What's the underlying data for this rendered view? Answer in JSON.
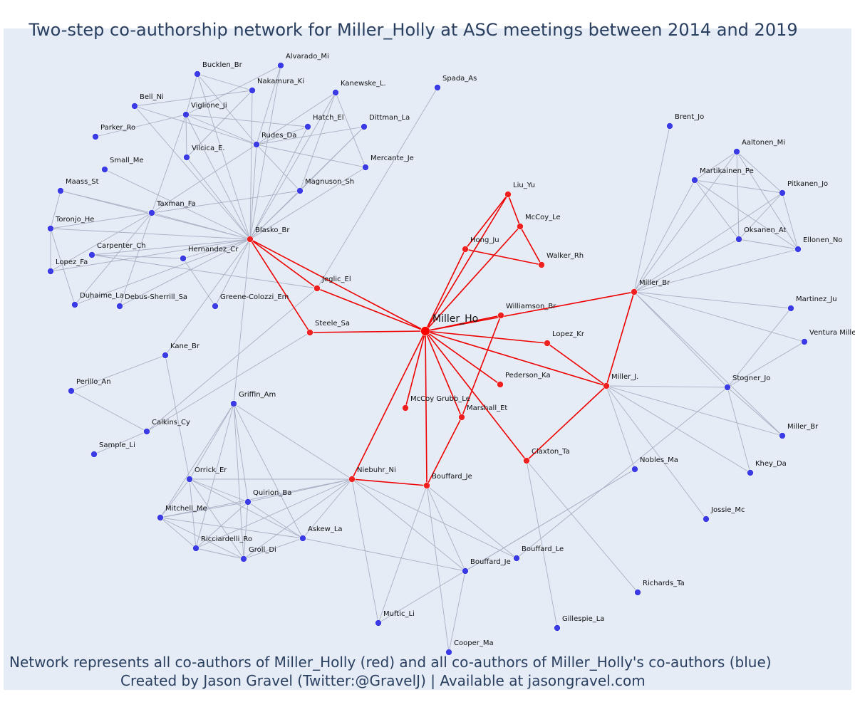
{
  "title": "Two-step co-authorship network for Miller_Holly at ASC meetings between 2014 and 2019",
  "footer": {
    "line1": "Network represents all co-authors of Miller_Holly (red) and all co-authors of Miller_Holly's co-authors (blue)",
    "line2": "Created by Jason Gravel (Twitter:@GravelJ) | Available at jasongravel.com"
  },
  "colors": {
    "background": "#e5ecf6",
    "focal": "#ff0000",
    "first_step": "#ef2020",
    "second_step": "#3b3be6",
    "red_edge": "#ee0000",
    "gray_edge": "#aab0c4",
    "text": "#2a3f5f"
  },
  "network": {
    "nodes": [
      {
        "id": "miller_ho",
        "label": "Miller_Ho",
        "group": "focal"
      },
      {
        "id": "liu_yu",
        "label": "Liu_Yu",
        "group": "first"
      },
      {
        "id": "mccoy_le",
        "label": "McCoy_Le",
        "group": "first"
      },
      {
        "id": "hong_ju",
        "label": "Hong_Ju",
        "group": "first"
      },
      {
        "id": "walker_rh",
        "label": "Walker_Rh",
        "group": "first"
      },
      {
        "id": "williamson_br",
        "label": "Williamson_Br",
        "group": "first"
      },
      {
        "id": "lopez_kr",
        "label": "Lopez_Kr",
        "group": "first"
      },
      {
        "id": "pederson_ka",
        "label": "Pederson_Ka",
        "group": "first"
      },
      {
        "id": "miller_j",
        "label": "Miller_J.",
        "group": "first"
      },
      {
        "id": "miller_br1",
        "label": "Miller_Br",
        "group": "first"
      },
      {
        "id": "claxton_ta",
        "label": "Claxton_Ta",
        "group": "first"
      },
      {
        "id": "marshall_et",
        "label": "Marshall_Et",
        "group": "first"
      },
      {
        "id": "mccoygrubb_le",
        "label": "McCoy Grubb_Le",
        "group": "first"
      },
      {
        "id": "bouffard_je1",
        "label": "Bouffard_Je",
        "group": "first"
      },
      {
        "id": "niebuhr_ni",
        "label": "Niebuhr_Ni",
        "group": "first"
      },
      {
        "id": "steele_sa",
        "label": "Steele_Sa",
        "group": "first"
      },
      {
        "id": "jeglic_el",
        "label": "Jeglic_El",
        "group": "first"
      },
      {
        "id": "blasko_br",
        "label": "Blasko_Br",
        "group": "first"
      },
      {
        "id": "alvarado_mi",
        "label": "Alvarado_Mi",
        "group": "second"
      },
      {
        "id": "bucklen_br",
        "label": "Bucklen_Br",
        "group": "second"
      },
      {
        "id": "nakamura_ki",
        "label": "Nakamura_Ki",
        "group": "second"
      },
      {
        "id": "kanewske_l",
        "label": "Kanewske_L.",
        "group": "second"
      },
      {
        "id": "bell_ni",
        "label": "Bell_Ni",
        "group": "second"
      },
      {
        "id": "viglione_ji",
        "label": "Viglione_Ji",
        "group": "second"
      },
      {
        "id": "hatch_el",
        "label": "Hatch_El",
        "group": "second"
      },
      {
        "id": "dittman_la",
        "label": "Dittman_La",
        "group": "second"
      },
      {
        "id": "parker_ro",
        "label": "Parker_Ro",
        "group": "second"
      },
      {
        "id": "rudes_da",
        "label": "Rudes_Da",
        "group": "second"
      },
      {
        "id": "vilcica_e",
        "label": "Vilcica_E.",
        "group": "second"
      },
      {
        "id": "small_me",
        "label": "Small_Me",
        "group": "second"
      },
      {
        "id": "mercante_je",
        "label": "Mercante_Je",
        "group": "second"
      },
      {
        "id": "maass_st",
        "label": "Maass_St",
        "group": "second"
      },
      {
        "id": "magnuson_sh",
        "label": "Magnuson_Sh",
        "group": "second"
      },
      {
        "id": "taxman_fa",
        "label": "Taxman_Fa",
        "group": "second"
      },
      {
        "id": "toronjo_he",
        "label": "Toronjo_He",
        "group": "second"
      },
      {
        "id": "carpenter_ch",
        "label": "Carpenter_Ch",
        "group": "second"
      },
      {
        "id": "hernandez_cr",
        "label": "Hernandez_Cr",
        "group": "second"
      },
      {
        "id": "lopez_fa",
        "label": "Lopez_Fa",
        "group": "second"
      },
      {
        "id": "duhaime_la",
        "label": "Duhaime_La",
        "group": "second"
      },
      {
        "id": "debussherrill_sa",
        "label": "Debus-Sherrill_Sa",
        "group": "second"
      },
      {
        "id": "greenecolozzi_em",
        "label": "Greene-Colozzi_Em",
        "group": "second"
      },
      {
        "id": "spada_as",
        "label": "Spada_As",
        "group": "second"
      },
      {
        "id": "kane_br",
        "label": "Kane_Br",
        "group": "second"
      },
      {
        "id": "perillo_an",
        "label": "Perillo_An",
        "group": "second"
      },
      {
        "id": "calkins_cy",
        "label": "Calkins_Cy",
        "group": "second"
      },
      {
        "id": "sample_li",
        "label": "Sample_Li",
        "group": "second"
      },
      {
        "id": "griffin_am",
        "label": "Griffin_Am",
        "group": "second"
      },
      {
        "id": "orrick_er",
        "label": "Orrick_Er",
        "group": "second"
      },
      {
        "id": "quirion_ba",
        "label": "Quirion_Ba",
        "group": "second"
      },
      {
        "id": "mitchell_me",
        "label": "Mitchell_Me",
        "group": "second"
      },
      {
        "id": "askew_la",
        "label": "Askew_La",
        "group": "second"
      },
      {
        "id": "ricciardelli_ro",
        "label": "Ricciardelli_Ro",
        "group": "second"
      },
      {
        "id": "groll_di",
        "label": "Groll_Di",
        "group": "second"
      },
      {
        "id": "mufticli",
        "label": "Muftic_Li",
        "group": "second"
      },
      {
        "id": "cooper_ma",
        "label": "Cooper_Ma",
        "group": "second"
      },
      {
        "id": "bouffard_je2",
        "label": "Bouffard_Je",
        "group": "second"
      },
      {
        "id": "bouffard_le",
        "label": "Bouffard_Le",
        "group": "second"
      },
      {
        "id": "gillespie_la",
        "label": "Gillespie_La",
        "group": "second"
      },
      {
        "id": "richards_ta",
        "label": "Richards_Ta",
        "group": "second"
      },
      {
        "id": "nobles_ma",
        "label": "Nobles_Ma",
        "group": "second"
      },
      {
        "id": "jossie_mc",
        "label": "Jossie_Mc",
        "group": "second"
      },
      {
        "id": "khey_da",
        "label": "Khey_Da",
        "group": "second"
      },
      {
        "id": "miller_br2",
        "label": "Miller_Br",
        "group": "second"
      },
      {
        "id": "stogner_jo",
        "label": "Stogner_Jo",
        "group": "second"
      },
      {
        "id": "ventura_miller",
        "label": "Ventura Miller",
        "group": "second"
      },
      {
        "id": "martinez_ju",
        "label": "Martinez_Ju",
        "group": "second"
      },
      {
        "id": "brent_jo",
        "label": "Brent_Jo",
        "group": "second"
      },
      {
        "id": "aaltonen_mi",
        "label": "Aaltonen_Mi",
        "group": "second"
      },
      {
        "id": "martikainen_pe",
        "label": "Martikainen_Pe",
        "group": "second"
      },
      {
        "id": "pitkanen_jo",
        "label": "Pitkanen_Jo",
        "group": "second"
      },
      {
        "id": "oksanen_at",
        "label": "Oksanen_At",
        "group": "second"
      },
      {
        "id": "ellonen_no",
        "label": "Ellonen_No",
        "group": "second"
      }
    ],
    "edges": [
      [
        "miller_ho",
        "liu_yu"
      ],
      [
        "miller_ho",
        "hong_ju"
      ],
      [
        "miller_ho",
        "mccoy_le"
      ],
      [
        "miller_ho",
        "williamson_br"
      ],
      [
        "miller_ho",
        "lopez_kr"
      ],
      [
        "miller_ho",
        "pederson_ka"
      ],
      [
        "miller_ho",
        "miller_j"
      ],
      [
        "miller_ho",
        "miller_br1"
      ],
      [
        "miller_ho",
        "claxton_ta"
      ],
      [
        "miller_ho",
        "marshall_et"
      ],
      [
        "miller_ho",
        "mccoygrubb_le"
      ],
      [
        "miller_ho",
        "bouffard_je1"
      ],
      [
        "miller_ho",
        "niebuhr_ni"
      ],
      [
        "miller_ho",
        "steele_sa"
      ],
      [
        "miller_ho",
        "jeglic_el"
      ],
      [
        "miller_ho",
        "blasko_br"
      ],
      [
        "liu_yu",
        "mccoy_le"
      ],
      [
        "liu_yu",
        "hong_ju"
      ],
      [
        "mccoy_le",
        "walker_rh"
      ],
      [
        "hong_ju",
        "walker_rh"
      ],
      [
        "williamson_br",
        "marshall_et"
      ],
      [
        "lopez_kr",
        "miller_j"
      ],
      [
        "miller_j",
        "miller_br1"
      ],
      [
        "miller_j",
        "claxton_ta"
      ],
      [
        "marshall_et",
        "bouffard_je1"
      ],
      [
        "bouffard_je1",
        "niebuhr_ni"
      ],
      [
        "blasko_br",
        "jeglic_el"
      ],
      [
        "blasko_br",
        "steele_sa"
      ],
      [
        "blasko_br",
        "bucklen_br"
      ],
      [
        "blasko_br",
        "alvarado_mi"
      ],
      [
        "blasko_br",
        "nakamura_ki"
      ],
      [
        "blasko_br",
        "kanewske_l"
      ],
      [
        "blasko_br",
        "bell_ni"
      ],
      [
        "blasko_br",
        "viglione_ji"
      ],
      [
        "blasko_br",
        "hatch_el"
      ],
      [
        "blasko_br",
        "dittman_la"
      ],
      [
        "blasko_br",
        "rudes_da"
      ],
      [
        "blasko_br",
        "vilcica_e"
      ],
      [
        "blasko_br",
        "mercante_je"
      ],
      [
        "blasko_br",
        "magnuson_sh"
      ],
      [
        "blasko_br",
        "taxman_fa"
      ],
      [
        "blasko_br",
        "maass_st"
      ],
      [
        "blasko_br",
        "toronjo_he"
      ],
      [
        "blasko_br",
        "carpenter_ch"
      ],
      [
        "blasko_br",
        "hernandez_cr"
      ],
      [
        "blasko_br",
        "lopez_fa"
      ],
      [
        "blasko_br",
        "duhaime_la"
      ],
      [
        "blasko_br",
        "debussherrill_sa"
      ],
      [
        "blasko_br",
        "greenecolozzi_em"
      ],
      [
        "blasko_br",
        "kane_br"
      ],
      [
        "blasko_br",
        "griffin_am"
      ],
      [
        "blasko_br",
        "small_me"
      ],
      [
        "bucklen_br",
        "nakamura_ki"
      ],
      [
        "bucklen_br",
        "viglione_ji"
      ],
      [
        "bucklen_br",
        "rudes_da"
      ],
      [
        "alvarado_mi",
        "viglione_ji"
      ],
      [
        "alvarado_mi",
        "rudes_da"
      ],
      [
        "nakamura_ki",
        "bell_ni"
      ],
      [
        "nakamura_ki",
        "vilcica_e"
      ],
      [
        "kanewske_l",
        "rudes_da"
      ],
      [
        "kanewske_l",
        "magnuson_sh"
      ],
      [
        "kanewske_l",
        "mercante_je"
      ],
      [
        "bell_ni",
        "rudes_da"
      ],
      [
        "viglione_ji",
        "hatch_el"
      ],
      [
        "viglione_ji",
        "rudes_da"
      ],
      [
        "viglione_ji",
        "parker_ro"
      ],
      [
        "viglione_ji",
        "vilcica_e"
      ],
      [
        "viglione_ji",
        "taxman_fa"
      ],
      [
        "rudes_da",
        "dittman_la"
      ],
      [
        "rudes_da",
        "hatch_el"
      ],
      [
        "rudes_da",
        "mercante_je"
      ],
      [
        "rudes_da",
        "magnuson_sh"
      ],
      [
        "rudes_da",
        "taxman_fa"
      ],
      [
        "dittman_la",
        "magnuson_sh"
      ],
      [
        "magnuson_sh",
        "taxman_fa"
      ],
      [
        "taxman_fa",
        "maass_st"
      ],
      [
        "taxman_fa",
        "toronjo_he"
      ],
      [
        "taxman_fa",
        "lopez_fa"
      ],
      [
        "taxman_fa",
        "duhaime_la"
      ],
      [
        "taxman_fa",
        "debussherrill_sa"
      ],
      [
        "toronjo_he",
        "maass_st"
      ],
      [
        "toronjo_he",
        "lopez_fa"
      ],
      [
        "toronjo_he",
        "duhaime_la"
      ],
      [
        "hernandez_cr",
        "carpenter_ch"
      ],
      [
        "hernandez_cr",
        "greenecolozzi_em"
      ],
      [
        "jeglic_el",
        "spada_as"
      ],
      [
        "jeglic_el",
        "carpenter_ch"
      ],
      [
        "jeglic_el",
        "calkins_cy"
      ],
      [
        "kane_br",
        "perillo_an"
      ],
      [
        "kane_br",
        "orrick_er"
      ],
      [
        "perillo_an",
        "calkins_cy"
      ],
      [
        "calkins_cy",
        "sample_li"
      ],
      [
        "calkins_cy",
        "steele_sa"
      ],
      [
        "griffin_am",
        "orrick_er"
      ],
      [
        "griffin_am",
        "quirion_ba"
      ],
      [
        "griffin_am",
        "mitchell_me"
      ],
      [
        "griffin_am",
        "askew_la"
      ],
      [
        "griffin_am",
        "ricciardelli_ro"
      ],
      [
        "griffin_am",
        "groll_di"
      ],
      [
        "griffin_am",
        "niebuhr_ni"
      ],
      [
        "orrick_er",
        "quirion_ba"
      ],
      [
        "orrick_er",
        "mitchell_me"
      ],
      [
        "orrick_er",
        "askew_la"
      ],
      [
        "orrick_er",
        "ricciardelli_ro"
      ],
      [
        "orrick_er",
        "groll_di"
      ],
      [
        "orrick_er",
        "niebuhr_ni"
      ],
      [
        "quirion_ba",
        "mitchell_me"
      ],
      [
        "quirion_ba",
        "askew_la"
      ],
      [
        "quirion_ba",
        "ricciardelli_ro"
      ],
      [
        "quirion_ba",
        "groll_di"
      ],
      [
        "quirion_ba",
        "niebuhr_ni"
      ],
      [
        "mitchell_me",
        "askew_la"
      ],
      [
        "mitchell_me",
        "ricciardelli_ro"
      ],
      [
        "mitchell_me",
        "groll_di"
      ],
      [
        "mitchell_me",
        "niebuhr_ni"
      ],
      [
        "askew_la",
        "groll_di"
      ],
      [
        "askew_la",
        "niebuhr_ni"
      ],
      [
        "ricciardelli_ro",
        "groll_di"
      ],
      [
        "ricciardelli_ro",
        "niebuhr_ni"
      ],
      [
        "groll_di",
        "niebuhr_ni"
      ],
      [
        "askew_la",
        "bouffard_je2"
      ],
      [
        "niebuhr_ni",
        "mufticli"
      ],
      [
        "niebuhr_ni",
        "bouffard_je2"
      ],
      [
        "niebuhr_ni",
        "bouffard_le"
      ],
      [
        "bouffard_je1",
        "mufticli"
      ],
      [
        "bouffard_je1",
        "cooper_ma"
      ],
      [
        "bouffard_je1",
        "bouffard_je2"
      ],
      [
        "bouffard_je1",
        "bouffard_le"
      ],
      [
        "bouffard_je2",
        "cooper_ma"
      ],
      [
        "bouffard_je2",
        "nobles_ma"
      ],
      [
        "mufticli",
        "nobles_ma"
      ],
      [
        "bouffard_le",
        "stogner_jo"
      ],
      [
        "claxton_ta",
        "gillespie_la"
      ],
      [
        "claxton_ta",
        "richards_ta"
      ],
      [
        "miller_j",
        "nobles_ma"
      ],
      [
        "miller_j",
        "stogner_jo"
      ],
      [
        "miller_j",
        "miller_br2"
      ],
      [
        "miller_j",
        "khey_da"
      ],
      [
        "miller_j",
        "jossie_mc"
      ],
      [
        "miller_br1",
        "brent_jo"
      ],
      [
        "miller_br1",
        "martikainen_pe"
      ],
      [
        "miller_br1",
        "aaltonen_mi"
      ],
      [
        "miller_br1",
        "pitkanen_jo"
      ],
      [
        "miller_br1",
        "oksanen_at"
      ],
      [
        "miller_br1",
        "ellonen_no"
      ],
      [
        "miller_br1",
        "martinez_ju"
      ],
      [
        "miller_br1",
        "ventura_miller"
      ],
      [
        "miller_br1",
        "stogner_jo"
      ],
      [
        "miller_br1",
        "miller_br2"
      ],
      [
        "stogner_jo",
        "martinez_ju"
      ],
      [
        "stogner_jo",
        "ventura_miller"
      ],
      [
        "stogner_jo",
        "miller_br2"
      ],
      [
        "stogner_jo",
        "khey_da"
      ],
      [
        "aaltonen_mi",
        "martikainen_pe"
      ],
      [
        "aaltonen_mi",
        "pitkanen_jo"
      ],
      [
        "aaltonen_mi",
        "oksanen_at"
      ],
      [
        "aaltonen_mi",
        "ellonen_no"
      ],
      [
        "martikainen_pe",
        "pitkanen_jo"
      ],
      [
        "martikainen_pe",
        "oksanen_at"
      ],
      [
        "martikainen_pe",
        "ellonen_no"
      ],
      [
        "pitkanen_jo",
        "oksanen_at"
      ],
      [
        "pitkanen_jo",
        "ellonen_no"
      ],
      [
        "oksanen_at",
        "ellonen_no"
      ]
    ]
  }
}
